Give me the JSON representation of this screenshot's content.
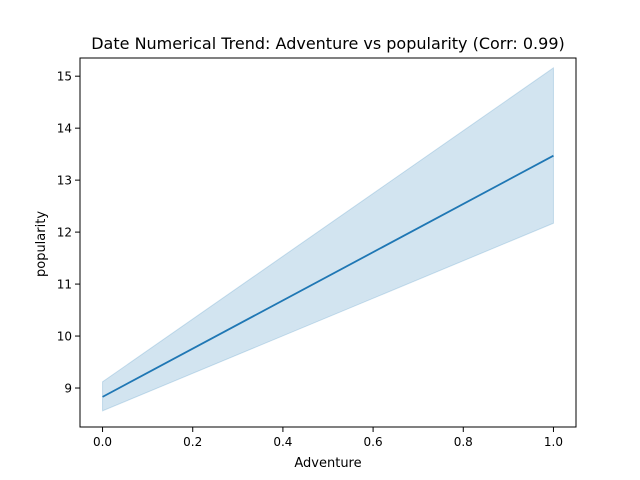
{
  "chart_data": {
    "type": "line",
    "title": "Date Numerical Trend: Adventure vs popularity (Corr: 0.99)",
    "xlabel": "Adventure",
    "ylabel": "popularity",
    "xlim": [
      -0.05,
      1.05
    ],
    "ylim": [
      8.25,
      15.35
    ],
    "xticks": [
      0.0,
      0.2,
      0.4,
      0.6,
      0.8,
      1.0
    ],
    "xtick_labels": [
      "0.0",
      "0.2",
      "0.4",
      "0.6",
      "0.8",
      "1.0"
    ],
    "yticks": [
      9,
      10,
      11,
      12,
      13,
      14,
      15
    ],
    "ytick_labels": [
      "9",
      "10",
      "11",
      "12",
      "13",
      "14",
      "15"
    ],
    "grid": false,
    "series": [
      {
        "x": [
          0.0,
          1.0
        ],
        "y": [
          8.83,
          13.47
        ],
        "ci_lower": [
          8.56,
          12.17
        ],
        "ci_upper": [
          9.12,
          15.16
        ]
      }
    ],
    "colors": {
      "line": "#1f77b4",
      "band": "#1f77b4"
    }
  }
}
